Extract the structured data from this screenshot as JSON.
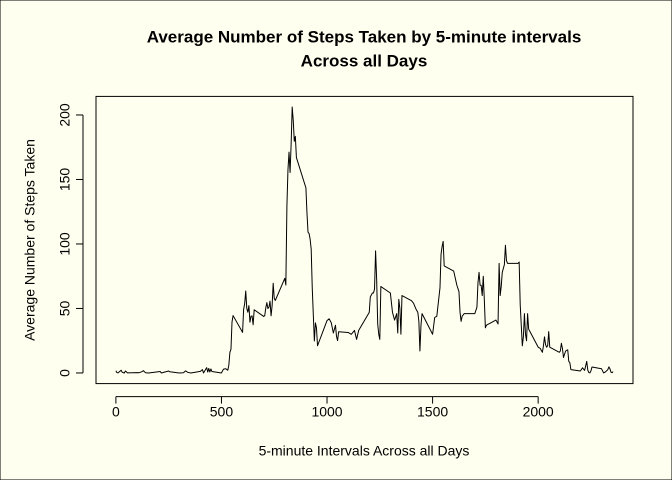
{
  "chart_data": {
    "type": "line",
    "title": [
      "Average Number of Steps Taken by 5-minute intervals",
      "Across all Days"
    ],
    "xlabel": "5-minute Intervals Across all Days",
    "ylabel": "Average Number of Steps Taken",
    "xlim": [
      -94.2,
      2449.2
    ],
    "ylim": [
      -8.25,
      214.4
    ],
    "xticks": [
      0,
      500,
      1000,
      1500,
      2000
    ],
    "yticks": [
      0,
      50,
      100,
      150,
      200
    ],
    "color": "#000000",
    "x": [
      0,
      5,
      10,
      25,
      30,
      40,
      45,
      55,
      100,
      110,
      125,
      130,
      140,
      155,
      210,
      215,
      250,
      255,
      300,
      320,
      330,
      340,
      355,
      400,
      410,
      415,
      430,
      435,
      440,
      445,
      450,
      455,
      500,
      505,
      510,
      520,
      530,
      535,
      540,
      545,
      550,
      555,
      600,
      605,
      610,
      615,
      620,
      625,
      630,
      635,
      640,
      645,
      650,
      655,
      700,
      705,
      710,
      715,
      720,
      725,
      730,
      735,
      740,
      745,
      750,
      755,
      800,
      805,
      810,
      815,
      820,
      825,
      830,
      835,
      840,
      845,
      850,
      855,
      900,
      905,
      910,
      915,
      920,
      925,
      930,
      935,
      940,
      945,
      950,
      955,
      1000,
      1010,
      1020,
      1030,
      1040,
      1045,
      1050,
      1055,
      1100,
      1115,
      1130,
      1140,
      1150,
      1200,
      1205,
      1215,
      1220,
      1225,
      1230,
      1235,
      1240,
      1245,
      1250,
      1255,
      1300,
      1310,
      1320,
      1330,
      1335,
      1340,
      1345,
      1350,
      1355,
      1400,
      1410,
      1420,
      1430,
      1435,
      1440,
      1445,
      1450,
      1500,
      1510,
      1520,
      1535,
      1540,
      1545,
      1550,
      1555,
      1600,
      1615,
      1625,
      1630,
      1635,
      1640,
      1650,
      1700,
      1710,
      1715,
      1720,
      1725,
      1730,
      1735,
      1740,
      1745,
      1750,
      1755,
      1800,
      1810,
      1815,
      1820,
      1825,
      1830,
      1840,
      1845,
      1850,
      1855,
      1900,
      1905,
      1910,
      1915,
      1920,
      1925,
      1930,
      1935,
      1940,
      1945,
      1950,
      1955,
      2000,
      2010,
      2020,
      2025,
      2030,
      2035,
      2040,
      2045,
      2050,
      2055,
      2100,
      2105,
      2110,
      2115,
      2120,
      2130,
      2140,
      2145,
      2150,
      2155,
      2200,
      2210,
      2220,
      2230,
      2235,
      2240,
      2245,
      2250,
      2255,
      2300,
      2310,
      2320,
      2330,
      2335,
      2340,
      2345,
      2350,
      2355
    ],
    "values": [
      1.7,
      0.3,
      0.1,
      2.1,
      0.5,
      0,
      1.5,
      0.1,
      0.3,
      0.2,
      1.1,
      1.8,
      0.2,
      0,
      1.1,
      0,
      1.5,
      0.9,
      0,
      0.2,
      1.6,
      0.5,
      0,
      1.2,
      2.6,
      0,
      4.1,
      0.7,
      3.5,
      0.8,
      3.1,
      1.1,
      0,
      1.6,
      3,
      3.3,
      2.1,
      6.1,
      16,
      18.3,
      39.5,
      44.5,
      31.5,
      49.3,
      53.8,
      63.5,
      50,
      47.1,
      52.2,
      39.3,
      44,
      44.2,
      37.4,
      49,
      43.8,
      44.4,
      50.5,
      54.5,
      49.9,
      51,
      55.7,
      44.3,
      52.3,
      69.5,
      57.8,
      56.2,
      73.4,
      68.2,
      129.4,
      157.5,
      171.2,
      155.4,
      177.3,
      206.2,
      195.9,
      179.6,
      183.4,
      167,
      143.5,
      124,
      109.1,
      108.1,
      103.7,
      96,
      66.2,
      45.2,
      24.8,
      38.8,
      35,
      21.1,
      40.6,
      42,
      38.9,
      31,
      37,
      28.3,
      25.1,
      31.9,
      31.4,
      30,
      33,
      26,
      33,
      47,
      59,
      62,
      62,
      65,
      94.6,
      73,
      38,
      30,
      26,
      67,
      62,
      47,
      41,
      46,
      31,
      57,
      50,
      30,
      60,
      56,
      54,
      50,
      47,
      40,
      17,
      37,
      46,
      30,
      43,
      44,
      66,
      92,
      98,
      102,
      83,
      79,
      68,
      63,
      47,
      40,
      44,
      46,
      46,
      51,
      70,
      78,
      68,
      68,
      60,
      75,
      57,
      35,
      37,
      41,
      38,
      85,
      60,
      67,
      78,
      84,
      99,
      87,
      85,
      85,
      85,
      86,
      53,
      37,
      21,
      28,
      46,
      30,
      25,
      46,
      34,
      20,
      19,
      16,
      21,
      28,
      22,
      20,
      21,
      32,
      20,
      16,
      17,
      23,
      19,
      12,
      17,
      18,
      9,
      8,
      2.6,
      1.5,
      4,
      2,
      9,
      2.2,
      0.3,
      0.1,
      1.6,
      4.6,
      3.3,
      0,
      1,
      2.6,
      4.7,
      3.3,
      0.6,
      0.2,
      1.1
    ]
  }
}
